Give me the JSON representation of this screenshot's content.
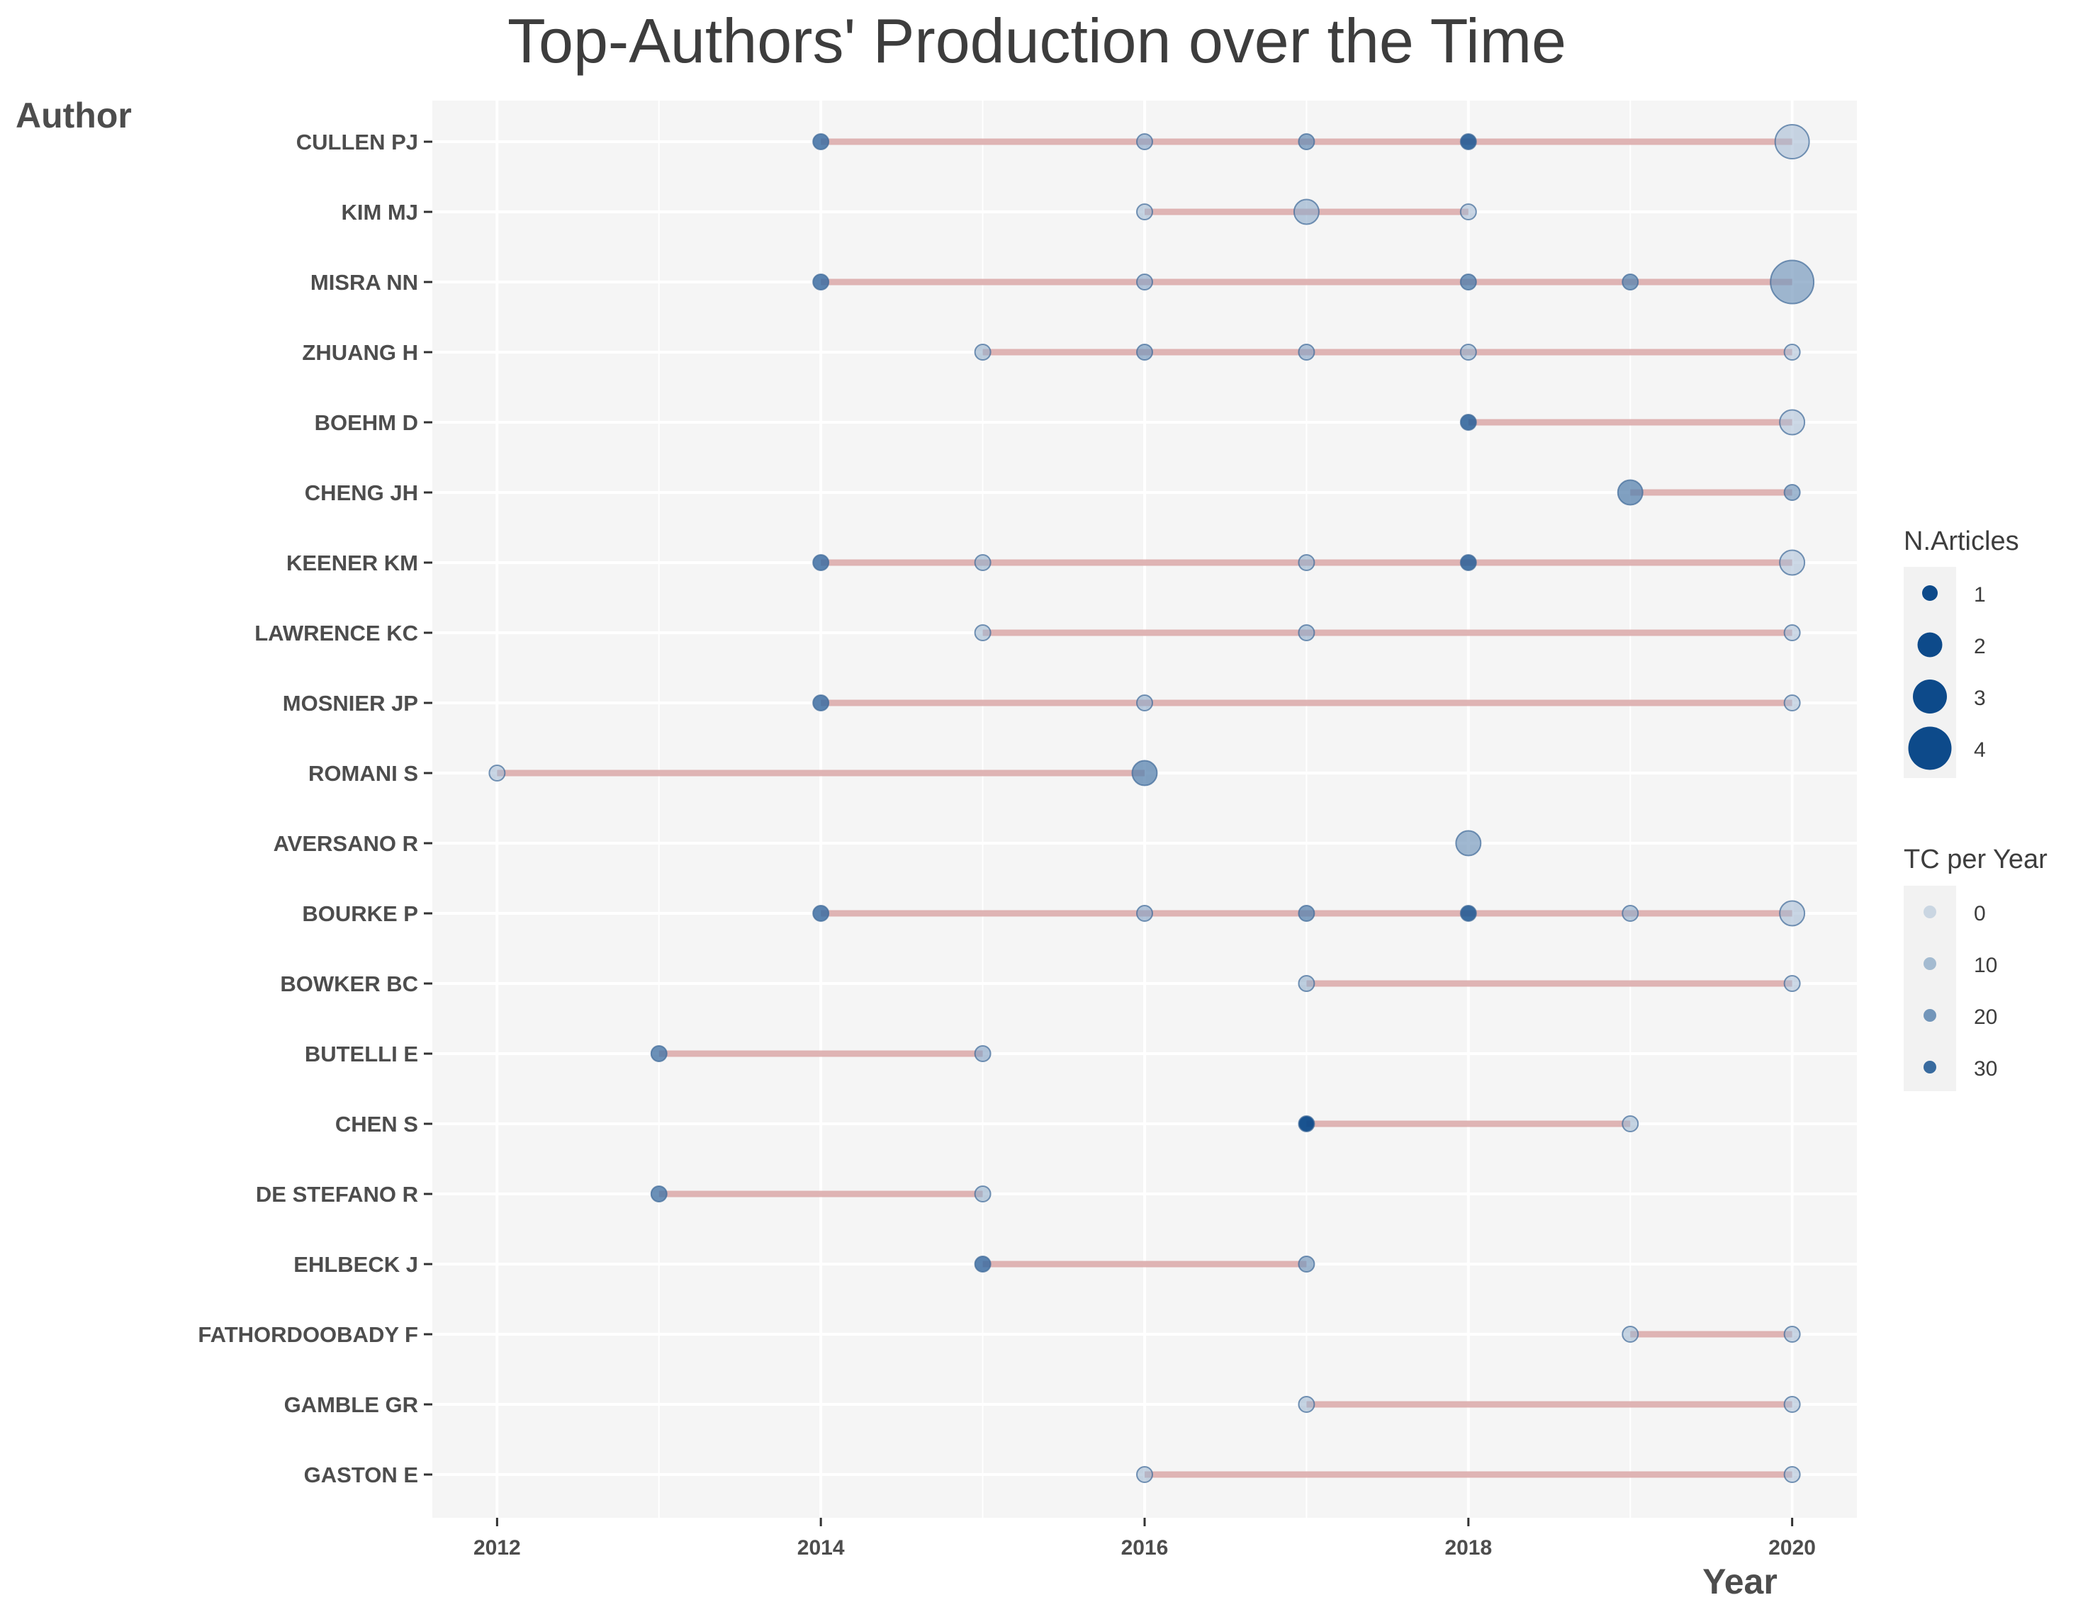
{
  "chart_data": {
    "type": "scatter",
    "title": "Top-Authors' Production over the Time",
    "xlabel": "Year",
    "ylabel": "Author",
    "xlim": [
      2011.6,
      2020.4
    ],
    "x_ticks": [
      2012,
      2014,
      2016,
      2018,
      2020
    ],
    "grid": true,
    "colors": {
      "panel_bg": "#f5f5f5",
      "grid": "#ffffff",
      "segment": "#d9a7a7",
      "point_dark": "#0d4a8a",
      "point_light": "#a9bfd6"
    },
    "authors": [
      "CULLEN PJ",
      "KIM MJ",
      "MISRA NN",
      "ZHUANG H",
      "BOEHM D",
      "CHENG JH",
      "KEENER KM",
      "LAWRENCE KC",
      "MOSNIER JP",
      "ROMANI S",
      "AVERSANO R",
      "BOURKE P",
      "BOWKER BC",
      "BUTELLI E",
      "CHEN S",
      "DE STEFANO R",
      "EHLBECK J",
      "FATHORDOOBADY F",
      "GAMBLE GR",
      "GASTON E"
    ],
    "series": [
      {
        "author": "CULLEN PJ",
        "segment": [
          2014,
          2020
        ],
        "points": [
          {
            "year": 2014,
            "n_articles": 1,
            "tc_per_year": 25
          },
          {
            "year": 2016,
            "n_articles": 1,
            "tc_per_year": 8
          },
          {
            "year": 2017,
            "n_articles": 1,
            "tc_per_year": 15
          },
          {
            "year": 2018,
            "n_articles": 1,
            "tc_per_year": 30
          },
          {
            "year": 2020,
            "n_articles": 3,
            "tc_per_year": 2
          }
        ]
      },
      {
        "author": "KIM MJ",
        "segment": [
          2016,
          2018
        ],
        "points": [
          {
            "year": 2016,
            "n_articles": 1,
            "tc_per_year": 3
          },
          {
            "year": 2017,
            "n_articles": 2,
            "tc_per_year": 6
          },
          {
            "year": 2018,
            "n_articles": 1,
            "tc_per_year": 2
          }
        ]
      },
      {
        "author": "MISRA NN",
        "segment": [
          2014,
          2020
        ],
        "points": [
          {
            "year": 2014,
            "n_articles": 1,
            "tc_per_year": 25
          },
          {
            "year": 2016,
            "n_articles": 1,
            "tc_per_year": 8
          },
          {
            "year": 2018,
            "n_articles": 1,
            "tc_per_year": 20
          },
          {
            "year": 2019,
            "n_articles": 1,
            "tc_per_year": 18
          },
          {
            "year": 2020,
            "n_articles": 4,
            "tc_per_year": 12
          }
        ]
      },
      {
        "author": "ZHUANG H",
        "segment": [
          2015,
          2020
        ],
        "points": [
          {
            "year": 2015,
            "n_articles": 1,
            "tc_per_year": 5
          },
          {
            "year": 2016,
            "n_articles": 1,
            "tc_per_year": 12
          },
          {
            "year": 2017,
            "n_articles": 1,
            "tc_per_year": 8
          },
          {
            "year": 2018,
            "n_articles": 1,
            "tc_per_year": 5
          },
          {
            "year": 2020,
            "n_articles": 1,
            "tc_per_year": 1
          }
        ]
      },
      {
        "author": "BOEHM D",
        "segment": [
          2018,
          2020
        ],
        "points": [
          {
            "year": 2018,
            "n_articles": 1,
            "tc_per_year": 28
          },
          {
            "year": 2020,
            "n_articles": 2,
            "tc_per_year": 1
          }
        ]
      },
      {
        "author": "CHENG JH",
        "segment": [
          2019,
          2020
        ],
        "points": [
          {
            "year": 2019,
            "n_articles": 2,
            "tc_per_year": 18
          },
          {
            "year": 2020,
            "n_articles": 1,
            "tc_per_year": 12
          }
        ]
      },
      {
        "author": "KEENER KM",
        "segment": [
          2014,
          2020
        ],
        "points": [
          {
            "year": 2014,
            "n_articles": 1,
            "tc_per_year": 25
          },
          {
            "year": 2015,
            "n_articles": 1,
            "tc_per_year": 5
          },
          {
            "year": 2017,
            "n_articles": 1,
            "tc_per_year": 5
          },
          {
            "year": 2018,
            "n_articles": 1,
            "tc_per_year": 28
          },
          {
            "year": 2020,
            "n_articles": 2,
            "tc_per_year": 1
          }
        ]
      },
      {
        "author": "LAWRENCE KC",
        "segment": [
          2015,
          2020
        ],
        "points": [
          {
            "year": 2015,
            "n_articles": 1,
            "tc_per_year": 3
          },
          {
            "year": 2017,
            "n_articles": 1,
            "tc_per_year": 6
          },
          {
            "year": 2020,
            "n_articles": 1,
            "tc_per_year": 1
          }
        ]
      },
      {
        "author": "MOSNIER JP",
        "segment": [
          2014,
          2020
        ],
        "points": [
          {
            "year": 2014,
            "n_articles": 1,
            "tc_per_year": 25
          },
          {
            "year": 2016,
            "n_articles": 1,
            "tc_per_year": 6
          },
          {
            "year": 2020,
            "n_articles": 1,
            "tc_per_year": 1
          }
        ]
      },
      {
        "author": "ROMANI S",
        "segment": [
          2012,
          2016
        ],
        "points": [
          {
            "year": 2012,
            "n_articles": 1,
            "tc_per_year": 2
          },
          {
            "year": 2016,
            "n_articles": 2,
            "tc_per_year": 18
          }
        ]
      },
      {
        "author": "AVERSANO R",
        "segment": null,
        "points": [
          {
            "year": 2018,
            "n_articles": 2,
            "tc_per_year": 12
          }
        ]
      },
      {
        "author": "BOURKE P",
        "segment": [
          2014,
          2020
        ],
        "points": [
          {
            "year": 2014,
            "n_articles": 1,
            "tc_per_year": 25
          },
          {
            "year": 2016,
            "n_articles": 1,
            "tc_per_year": 8
          },
          {
            "year": 2017,
            "n_articles": 1,
            "tc_per_year": 18
          },
          {
            "year": 2018,
            "n_articles": 1,
            "tc_per_year": 30
          },
          {
            "year": 2019,
            "n_articles": 1,
            "tc_per_year": 6
          },
          {
            "year": 2020,
            "n_articles": 2,
            "tc_per_year": 2
          }
        ]
      },
      {
        "author": "BOWKER BC",
        "segment": [
          2017,
          2020
        ],
        "points": [
          {
            "year": 2017,
            "n_articles": 1,
            "tc_per_year": 5
          },
          {
            "year": 2020,
            "n_articles": 1,
            "tc_per_year": 1
          }
        ]
      },
      {
        "author": "BUTELLI E",
        "segment": [
          2013,
          2015
        ],
        "points": [
          {
            "year": 2013,
            "n_articles": 1,
            "tc_per_year": 22
          },
          {
            "year": 2015,
            "n_articles": 1,
            "tc_per_year": 8
          }
        ]
      },
      {
        "author": "CHEN S",
        "segment": [
          2017,
          2019
        ],
        "points": [
          {
            "year": 2017,
            "n_articles": 1,
            "tc_per_year": 35
          },
          {
            "year": 2019,
            "n_articles": 1,
            "tc_per_year": 3
          }
        ]
      },
      {
        "author": "DE STEFANO R",
        "segment": [
          2013,
          2015
        ],
        "points": [
          {
            "year": 2013,
            "n_articles": 1,
            "tc_per_year": 22
          },
          {
            "year": 2015,
            "n_articles": 1,
            "tc_per_year": 5
          }
        ]
      },
      {
        "author": "EHLBECK J",
        "segment": [
          2015,
          2017
        ],
        "points": [
          {
            "year": 2015,
            "n_articles": 1,
            "tc_per_year": 25
          },
          {
            "year": 2017,
            "n_articles": 1,
            "tc_per_year": 12
          }
        ]
      },
      {
        "author": "FATHORDOOBADY F",
        "segment": [
          2019,
          2020
        ],
        "points": [
          {
            "year": 2019,
            "n_articles": 1,
            "tc_per_year": 3
          },
          {
            "year": 2020,
            "n_articles": 1,
            "tc_per_year": 2
          }
        ]
      },
      {
        "author": "GAMBLE GR",
        "segment": [
          2017,
          2020
        ],
        "points": [
          {
            "year": 2017,
            "n_articles": 1,
            "tc_per_year": 3
          },
          {
            "year": 2020,
            "n_articles": 1,
            "tc_per_year": 1
          }
        ]
      },
      {
        "author": "GASTON E",
        "segment": [
          2016,
          2020
        ],
        "points": [
          {
            "year": 2016,
            "n_articles": 1,
            "tc_per_year": 3
          },
          {
            "year": 2020,
            "n_articles": 1,
            "tc_per_year": 1
          }
        ]
      }
    ],
    "legend": {
      "placement": "right",
      "size_title": "N.Articles",
      "size_items": [
        {
          "label": "1",
          "value": 1
        },
        {
          "label": "2",
          "value": 2
        },
        {
          "label": "3",
          "value": 3
        },
        {
          "label": "4",
          "value": 4
        }
      ],
      "color_title": "TC per Year",
      "color_items": [
        {
          "label": "0",
          "value": 0
        },
        {
          "label": "10",
          "value": 10
        },
        {
          "label": "20",
          "value": 20
        },
        {
          "label": "30",
          "value": 30
        }
      ]
    }
  }
}
